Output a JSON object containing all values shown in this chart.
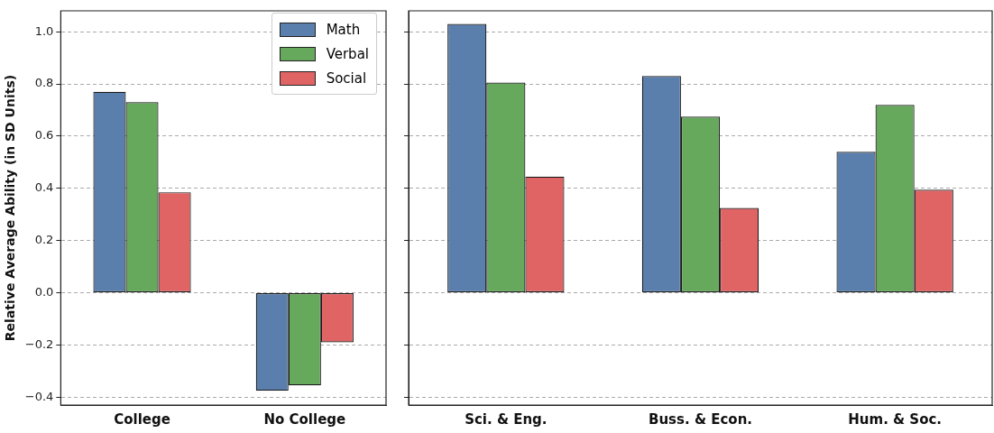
{
  "chart_data": [
    {
      "type": "bar",
      "ylabel": "Relative Average Ability (in SD Units)",
      "categories": [
        "College",
        "No College"
      ],
      "series": [
        {
          "name": "Math",
          "color": "#5b7fad",
          "values": [
            0.77,
            -0.375
          ]
        },
        {
          "name": "Verbal",
          "color": "#66a85c",
          "values": [
            0.73,
            -0.355
          ]
        },
        {
          "name": "Social",
          "color": "#e06464",
          "values": [
            0.385,
            -0.19
          ]
        }
      ],
      "ylim": [
        -0.43,
        1.08
      ],
      "yticks": [
        {
          "value": -0.4,
          "label": "−0.4"
        },
        {
          "value": -0.2,
          "label": "−0.2"
        },
        {
          "value": 0,
          "label": "0.0"
        },
        {
          "value": 0.2,
          "label": "0.2"
        },
        {
          "value": 0.4,
          "label": "0.4"
        },
        {
          "value": 0.6,
          "label": "0.6"
        },
        {
          "value": 0.8,
          "label": "0.8"
        },
        {
          "value": 1,
          "label": "1.0"
        }
      ],
      "grid": "y",
      "legend": "top right"
    },
    {
      "type": "bar",
      "categories": [
        "Sci. & Eng.",
        "Buss. & Econ.",
        "Hum. & Soc."
      ],
      "series": [
        {
          "color": "#5b7fad",
          "values": [
            1.03,
            0.83,
            0.54
          ]
        },
        {
          "color": "#66a85c",
          "values": [
            0.805,
            0.675,
            0.72
          ]
        },
        {
          "color": "#e06464",
          "values": [
            0.445,
            0.325,
            0.395
          ]
        }
      ],
      "ylim": [
        -0.43,
        1.08
      ],
      "yticks": [
        -0.4,
        -0.2,
        0.0,
        0.2,
        0.4,
        0.6,
        0.8,
        1.0
      ],
      "grid": "y",
      "tick_labels": "x"
    }
  ]
}
